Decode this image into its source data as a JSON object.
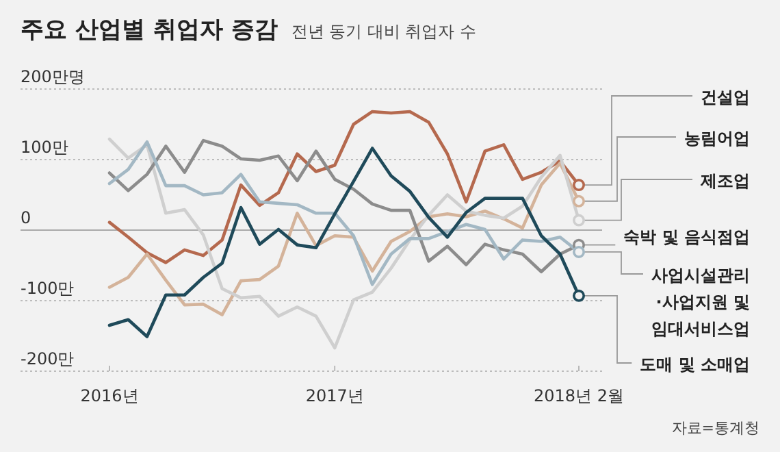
{
  "chart_data": {
    "type": "line",
    "title": "주요 산업별 취업자 증감",
    "subtitle": "전년 동기 대비 취업자 수",
    "categories": [
      "2016년",
      null,
      null,
      null,
      null,
      null,
      null,
      null,
      null,
      null,
      null,
      null,
      "2017년",
      null,
      null,
      null,
      null,
      null,
      null,
      null,
      null,
      null,
      null,
      null,
      null,
      "2018년 2월"
    ],
    "series": [
      {
        "name": "건설업",
        "color": "#b5694e",
        "values": [
          11,
          -10,
          -32,
          -46,
          -28,
          -36,
          -14,
          64,
          35,
          53,
          108,
          83,
          92,
          150,
          168,
          166,
          168,
          153,
          108,
          40,
          112,
          121,
          72,
          82,
          98,
          64
        ]
      },
      {
        "name": "농림어업",
        "color": "#d4b39a",
        "values": [
          -81,
          -67,
          -34,
          -71,
          -106,
          -105,
          -120,
          -72,
          -70,
          -51,
          24,
          -22,
          -8,
          -10,
          -58,
          -16,
          -2,
          19,
          23,
          19,
          27,
          16,
          3,
          64,
          95,
          41
        ]
      },
      {
        "name": "제조업",
        "color": "#cfcfcf",
        "values": [
          129,
          102,
          121,
          24,
          29,
          -7,
          -83,
          -96,
          -94,
          -122,
          -109,
          -122,
          -167,
          -99,
          -88,
          -54,
          -14,
          21,
          50,
          27,
          21,
          17,
          34,
          75,
          106,
          14
        ]
      },
      {
        "name": "숙박 및 음식점업",
        "color": "#8c8c8c",
        "values": [
          81,
          56,
          79,
          119,
          82,
          127,
          119,
          101,
          99,
          105,
          70,
          112,
          72,
          58,
          37,
          28,
          28,
          -44,
          -23,
          -49,
          -20,
          -28,
          -34,
          -59,
          -34,
          -21
        ]
      },
      {
        "name": "사업시설관리·사업지원 및 임대서비스업",
        "color": "#a3b8c4",
        "values": [
          66,
          86,
          125,
          63,
          63,
          50,
          53,
          79,
          40,
          38,
          36,
          24,
          24,
          -8,
          -77,
          -34,
          -12,
          -12,
          -2,
          8,
          1,
          -41,
          -14,
          -16,
          -10,
          -31
        ]
      },
      {
        "name": "도매 및 소매업",
        "color": "#1f4a5a",
        "values": [
          -135,
          -127,
          -151,
          -92,
          -92,
          -67,
          -47,
          32,
          -20,
          1,
          -21,
          -25,
          23,
          69,
          116,
          77,
          55,
          18,
          -10,
          25,
          45,
          45,
          45,
          -8,
          -34,
          -93
        ]
      }
    ],
    "ylim": [
      -200,
      200
    ],
    "yticks": [
      {
        "value": 200,
        "label": "200만명"
      },
      {
        "value": 100,
        "label": "100만"
      },
      0,
      {
        "value": -100,
        "label": "-100만"
      },
      {
        "value": -200,
        "label": "-200만"
      }
    ],
    "grid": "y",
    "legend": "right",
    "annotations": [
      "자료=통계청"
    ]
  }
}
